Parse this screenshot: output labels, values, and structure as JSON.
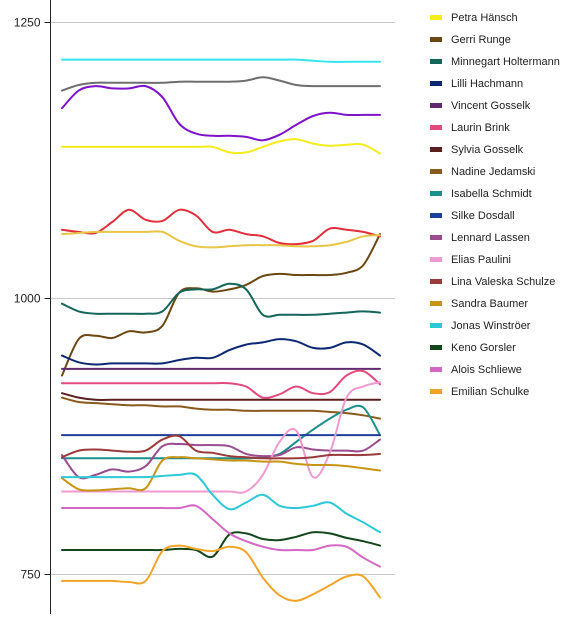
{
  "chart_data": {
    "type": "line",
    "title": "",
    "xlabel": "",
    "ylabel": "",
    "ylim": [
      705,
      1270
    ],
    "y_ticks": [
      750,
      1000,
      1250
    ],
    "y_tick_labels": [
      "750",
      "1000",
      "1250"
    ],
    "grid": true,
    "legend_position": "right",
    "interpolation": "smooth",
    "x": [
      0,
      1,
      2,
      3,
      4,
      5,
      6,
      7,
      8,
      9,
      10,
      11,
      12,
      13,
      14,
      15,
      16,
      17,
      18,
      19
    ],
    "series": [
      {
        "name": "Petra Hänsch",
        "color": "#f4ec1c",
        "values": [
          1137,
          1137,
          1137,
          1137,
          1137,
          1137,
          1137,
          1137,
          1137,
          1137,
          1132,
          1132,
          1137,
          1142,
          1144,
          1140,
          1138,
          1139,
          1139,
          1131
        ]
      },
      {
        "name": "Gerri Runge",
        "color": "#6b4712",
        "values": [
          930,
          963,
          966,
          964,
          970,
          969,
          975,
          1005,
          1009,
          1006,
          1008,
          1012,
          1020,
          1022,
          1021,
          1021,
          1021,
          1023,
          1030,
          1058
        ]
      },
      {
        "name": "Minnegart Holtermann",
        "color": "#136659",
        "values": [
          995,
          988,
          986,
          986,
          986,
          986,
          988,
          1005,
          1008,
          1008,
          1013,
          1008,
          985,
          985,
          985,
          985,
          986,
          987,
          988,
          987
        ]
      },
      {
        "name": "Lilli Hachmann",
        "color": "#0c2872",
        "values": [
          948,
          942,
          940,
          941,
          941,
          941,
          941,
          944,
          946,
          946,
          953,
          958,
          960,
          963,
          961,
          955,
          955,
          960,
          958,
          948
        ]
      },
      {
        "name": "Vincent Gosselk",
        "color": "#5f2b6e",
        "values": [
          936,
          936,
          936,
          936,
          936,
          936,
          936,
          936,
          936,
          936,
          936,
          936,
          936,
          936,
          936,
          936,
          936,
          936,
          936,
          936
        ]
      },
      {
        "name": "Laurin Brink",
        "color": "#e24a7c",
        "values": [
          923,
          923,
          923,
          923,
          923,
          923,
          923,
          923,
          923,
          923,
          923,
          920,
          910,
          913,
          920,
          914,
          915,
          930,
          934,
          922
        ]
      },
      {
        "name": "Sylvia Gosselk",
        "color": "#5c1f1f",
        "values": [
          914,
          910,
          908,
          908,
          908,
          908,
          908,
          908,
          908,
          908,
          908,
          908,
          908,
          908,
          908,
          908,
          908,
          908,
          908,
          908
        ]
      },
      {
        "name": "Nadine Jedamski",
        "color": "#8a5a1c",
        "values": [
          910,
          906,
          905,
          904,
          903,
          903,
          902,
          902,
          900,
          899,
          899,
          898,
          898,
          898,
          898,
          898,
          897,
          896,
          894,
          891
        ]
      },
      {
        "name": "Isabella Schmidt",
        "color": "#1a8f8c",
        "values": [
          855,
          855,
          855,
          855,
          855,
          855,
          855,
          855,
          855,
          855,
          855,
          855,
          856,
          859,
          870,
          881,
          891,
          899,
          901,
          876
        ]
      },
      {
        "name": "Silke Dosdall",
        "color": "#1c3f9a",
        "values": [
          876,
          876,
          876,
          876,
          876,
          876,
          876,
          876,
          876,
          876,
          876,
          876,
          876,
          876,
          876,
          876,
          876,
          876,
          876,
          876
        ]
      },
      {
        "name": "Lennard Lassen",
        "color": "#9a4c8e",
        "values": [
          858,
          838,
          840,
          845,
          843,
          848,
          866,
          868,
          867,
          867,
          866,
          859,
          857,
          858,
          865,
          863,
          862,
          862,
          862,
          872
        ]
      },
      {
        "name": "Elias Paulini",
        "color": "#f09ad2",
        "values": [
          825,
          825,
          825,
          825,
          825,
          825,
          825,
          825,
          825,
          825,
          825,
          825,
          840,
          870,
          880,
          838,
          860,
          910,
          920,
          924
        ]
      },
      {
        "name": "Lina Valeska Schulze",
        "color": "#9a3a3a",
        "values": [
          856,
          862,
          863,
          862,
          861,
          862,
          872,
          875,
          862,
          860,
          857,
          856,
          855,
          855,
          855,
          856,
          858,
          858,
          858,
          859
        ]
      },
      {
        "name": "Sandra Baumer",
        "color": "#c79415",
        "values": [
          837,
          827,
          826,
          827,
          828,
          828,
          853,
          856,
          855,
          854,
          853,
          853,
          852,
          852,
          850,
          849,
          849,
          848,
          846,
          844
        ]
      },
      {
        "name": "Jonas Winströer",
        "color": "#2cc8d8",
        "values": [
          838,
          838,
          838,
          838,
          838,
          838,
          839,
          840,
          840,
          822,
          809,
          815,
          822,
          812,
          810,
          812,
          815,
          805,
          797,
          788
        ]
      },
      {
        "name": "Keno Gorsler",
        "color": "#13461a",
        "values": [
          772,
          772,
          772,
          772,
          772,
          772,
          772,
          773,
          772,
          766,
          786,
          787,
          782,
          781,
          784,
          788,
          787,
          783,
          780,
          776
        ]
      },
      {
        "name": "Alois Schliewe",
        "color": "#d466c4",
        "values": [
          810,
          810,
          810,
          810,
          810,
          810,
          810,
          810,
          812,
          800,
          787,
          780,
          775,
          772,
          772,
          772,
          776,
          775,
          765,
          757
        ]
      },
      {
        "name": "Emilian Schulke",
        "color": "#f2a42a",
        "values": [
          744,
          744,
          744,
          744,
          743,
          744,
          771,
          776,
          773,
          771,
          775,
          770,
          747,
          731,
          726,
          732,
          740,
          748,
          748,
          729
        ]
      },
      {
        "name": "",
        "color": "#e02f3a",
        "values": [
          1062,
          1060,
          1059,
          1069,
          1080,
          1071,
          1070,
          1080,
          1075,
          1060,
          1062,
          1058,
          1056,
          1050,
          1049,
          1052,
          1063,
          1062,
          1060,
          1056
        ]
      },
      {
        "name": "",
        "color": "#e8c547",
        "values": [
          1058,
          1059,
          1060,
          1060,
          1060,
          1060,
          1060,
          1052,
          1047,
          1046,
          1047,
          1048,
          1048,
          1048,
          1047,
          1047,
          1048,
          1051,
          1056,
          1057
        ]
      },
      {
        "name": "",
        "color": "#7e12c9",
        "values": [
          1172,
          1188,
          1192,
          1190,
          1190,
          1192,
          1182,
          1158,
          1149,
          1147,
          1147,
          1146,
          1143,
          1148,
          1157,
          1165,
          1168,
          1166,
          1166,
          1166
        ]
      },
      {
        "name": "",
        "color": "#6e6e6e",
        "values": [
          1188,
          1193,
          1195,
          1195,
          1195,
          1195,
          1195,
          1196,
          1196,
          1196,
          1196,
          1197,
          1200,
          1197,
          1193,
          1192,
          1192,
          1192,
          1192,
          1192
        ]
      },
      {
        "name": "",
        "color": "#34e4ee",
        "values": [
          1216,
          1216,
          1216,
          1216,
          1216,
          1216,
          1216,
          1216,
          1216,
          1216,
          1216,
          1216,
          1216,
          1216,
          1216,
          1215,
          1214,
          1214,
          1214,
          1214
        ]
      }
    ]
  }
}
